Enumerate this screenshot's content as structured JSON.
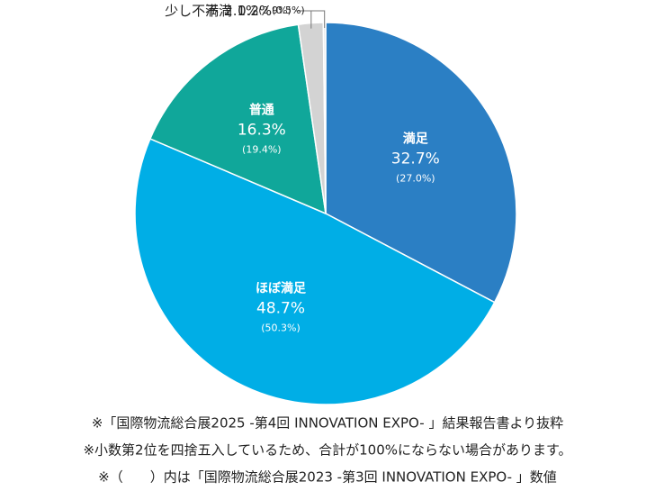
{
  "chart_data": {
    "type": "pie",
    "categories": [
      "満足",
      "ほぼ満足",
      "普通",
      "少し不満",
      "不満"
    ],
    "values": [
      32.7,
      48.7,
      16.3,
      2.1,
      0.2
    ],
    "value_labels": [
      "32.7%",
      "48.7%",
      "16.3%",
      "2.1%",
      "0.2%"
    ],
    "previous_values": [
      27.0,
      50.3,
      19.4,
      2.9,
      0.5
    ],
    "previous_value_labels": [
      "(27.0%)",
      "(50.3%)",
      "(19.4%)",
      "(2.9%)",
      "(0.5%)"
    ],
    "colors": [
      "#2b7fc4",
      "#00aee6",
      "#10a79a",
      "#d3d3d3",
      "#e9e9e9"
    ],
    "notes": [
      "※「国際物流総合展2025 -第4回 INNOVATION EXPO- 」結果報告書より抜粋",
      "※小数第2位を四捨五入しているため、合計が100%にならない場合があります。",
      "※（　　）内は「国際物流総合展2023 -第3回 INNOVATION EXPO- 」数値"
    ]
  }
}
